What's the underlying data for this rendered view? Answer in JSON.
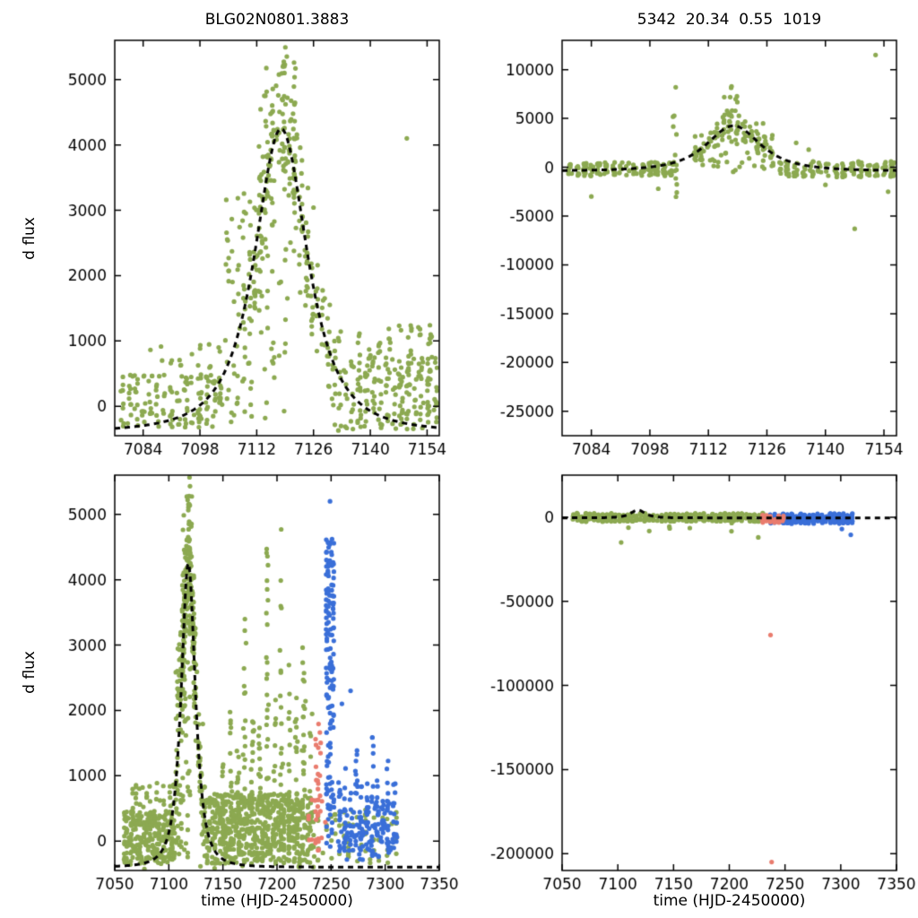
{
  "figure": {
    "background": "#ffffff"
  },
  "colors": {
    "green": "#8ca951",
    "blue": "#3a6fd8",
    "red": "#e97c6e",
    "curve": "#000000",
    "axis": "#000000"
  },
  "chart_data": [
    {
      "type": "scatter",
      "title": "BLG02N0801.3883",
      "xlabel": "",
      "ylabel": "d flux",
      "xlim": [
        7077,
        7157
      ],
      "ylim": [
        -450,
        5600
      ],
      "xticks": [
        7084,
        7098,
        7112,
        7126,
        7140,
        7154
      ],
      "yticks": [
        0,
        1000,
        2000,
        3000,
        4000,
        5000
      ],
      "grid": false,
      "legend": "none",
      "model_curve": {
        "shape": "paczynski-like",
        "t0": 7118,
        "width": 10,
        "amp": 4650,
        "base": -400,
        "exp": 1.5,
        "dashed": true
      },
      "clusters": [
        {
          "color": "green",
          "n": 140,
          "x": [
            7078,
            7104
          ],
          "y": [
            -320,
            480
          ],
          "nights": 15
        },
        {
          "color": "green",
          "n": 22,
          "x": [
            7080,
            7104
          ],
          "y": [
            450,
            950
          ],
          "nights": 10
        },
        {
          "color": "green",
          "n": 70,
          "x": [
            7104,
            7111
          ],
          "y": [
            -280,
            3300
          ],
          "nights": 5
        },
        {
          "color": "green",
          "mode": "follow",
          "n": 170,
          "x": [
            7111,
            7125
          ],
          "sigma": 550,
          "nights": 10
        },
        {
          "color": "green",
          "n": 45,
          "x": [
            7112,
            7122
          ],
          "y": [
            2600,
            5450
          ],
          "nights": 7
        },
        {
          "color": "green",
          "n": 30,
          "x": [
            7112,
            7120
          ],
          "y": [
            -250,
            2500
          ],
          "nights": 5
        },
        {
          "color": "green",
          "mode": "follow",
          "n": 60,
          "x": [
            7125,
            7133
          ],
          "sigma": 450,
          "nights": 6
        },
        {
          "color": "green",
          "n": 170,
          "x": [
            7133,
            7157
          ],
          "y": [
            -350,
            750
          ],
          "nights": 14
        },
        {
          "color": "green",
          "n": 55,
          "x": [
            7136,
            7156
          ],
          "y": [
            400,
            1250
          ],
          "nights": 8
        }
      ],
      "outliers": [
        [
          7149,
          4100,
          "green"
        ]
      ]
    },
    {
      "type": "scatter",
      "title": "5342  20.34  0.55  1019",
      "xlabel": "",
      "ylabel": "",
      "xlim": [
        7077,
        7157
      ],
      "ylim": [
        -27500,
        13000
      ],
      "xticks": [
        7084,
        7098,
        7112,
        7126,
        7140,
        7154
      ],
      "yticks": [
        -25000,
        -20000,
        -15000,
        -10000,
        -5000,
        0,
        5000,
        10000
      ],
      "grid": false,
      "legend": "none",
      "model_curve": {
        "shape": "paczynski-like",
        "t0": 7118,
        "width": 10,
        "amp": 4650,
        "base": -400,
        "exp": 1.5,
        "dashed": true
      },
      "clusters": [
        {
          "color": "green",
          "n": 150,
          "x": [
            7078,
            7104
          ],
          "y": [
            -900,
            500
          ],
          "nights": 15
        },
        {
          "color": "green",
          "n": 14,
          "x": [
            7103.5,
            7104.5
          ],
          "y": [
            -3500,
            8700
          ]
        },
        {
          "color": "green",
          "mode": "follow",
          "n": 130,
          "x": [
            7108,
            7128
          ],
          "sigma": 900,
          "nights": 12
        },
        {
          "color": "green",
          "n": 12,
          "x": [
            7114,
            7121
          ],
          "y": [
            5000,
            8800
          ],
          "nights": 5
        },
        {
          "color": "green",
          "n": 18,
          "x": [
            7112,
            7126
          ],
          "y": [
            -800,
            1500
          ],
          "nights": 8
        },
        {
          "color": "green",
          "n": 150,
          "x": [
            7128,
            7157
          ],
          "y": [
            -1000,
            600
          ],
          "nights": 15
        }
      ],
      "outliers": [
        [
          7084,
          -3000,
          "green"
        ],
        [
          7100,
          -2200,
          "green"
        ],
        [
          7133,
          2500,
          "green"
        ],
        [
          7136,
          1800,
          "green"
        ],
        [
          7140,
          -1800,
          "green"
        ],
        [
          7147,
          -6300,
          "green"
        ],
        [
          7152,
          11500,
          "green"
        ],
        [
          7155,
          -2500,
          "green"
        ]
      ]
    },
    {
      "type": "scatter",
      "title": "",
      "xlabel": "time (HJD-2450000)",
      "ylabel": "d flux",
      "xlim": [
        7050,
        7350
      ],
      "ylim": [
        -450,
        5600
      ],
      "xticks": [
        7050,
        7100,
        7150,
        7200,
        7250,
        7300,
        7350
      ],
      "yticks": [
        0,
        1000,
        2000,
        3000,
        4000,
        5000
      ],
      "grid": false,
      "legend": "none",
      "model_curve": {
        "shape": "paczynski-like",
        "t0": 7118,
        "width": 10,
        "amp": 4650,
        "base": -400,
        "exp": 1.5,
        "dashed": true
      },
      "clusters": [
        {
          "color": "green",
          "n": 280,
          "x": [
            7058,
            7106
          ],
          "y": [
            -350,
            460
          ],
          "nights": 24
        },
        {
          "color": "green",
          "n": 35,
          "x": [
            7062,
            7106
          ],
          "y": [
            420,
            900
          ],
          "nights": 14
        },
        {
          "color": "green",
          "n": 14,
          "x": [
            7058,
            7240
          ],
          "y": [
            -430,
            -310
          ],
          "nights": 14
        },
        {
          "color": "green",
          "n": 60,
          "x": [
            7106,
            7112
          ],
          "y": [
            -260,
            3300
          ],
          "nights": 4
        },
        {
          "color": "green",
          "mode": "follow",
          "n": 170,
          "x": [
            7112,
            7124
          ],
          "sigma": 500,
          "nights": 9
        },
        {
          "color": "green",
          "n": 45,
          "x": [
            7112,
            7122
          ],
          "y": [
            2600,
            5450
          ],
          "nights": 7
        },
        {
          "color": "green",
          "n": 28,
          "x": [
            7112,
            7120
          ],
          "y": [
            -250,
            2500
          ],
          "nights": 5
        },
        {
          "color": "green",
          "mode": "follow",
          "n": 60,
          "x": [
            7124,
            7134
          ],
          "sigma": 450,
          "nights": 7
        },
        {
          "color": "green",
          "n": 650,
          "x": [
            7134,
            7232
          ],
          "y": [
            -350,
            720
          ],
          "nights": 40
        },
        {
          "color": "green",
          "mode": "columns",
          "ymin": -120,
          "cols": [
            [
              7150,
              1200,
              14
            ],
            [
              7157,
              2000,
              16
            ],
            [
              7164,
              1500,
              14
            ],
            [
              7170,
              3400,
              22
            ],
            [
              7177,
              2400,
              18
            ],
            [
              7184,
              1800,
              14
            ],
            [
              7191,
              5200,
              26
            ],
            [
              7198,
              2200,
              16
            ],
            [
              7204,
              4800,
              22
            ],
            [
              7211,
              2800,
              18
            ],
            [
              7218,
              2200,
              16
            ],
            [
              7225,
              3400,
              20
            ],
            [
              7231,
              2000,
              14
            ]
          ]
        },
        {
          "color": "green",
          "n": 70,
          "x": [
            7232,
            7312
          ],
          "y": [
            -340,
            480
          ],
          "nights": 20
        },
        {
          "color": "blue",
          "n": 95,
          "x": [
            7245,
            7253
          ],
          "y": [
            2300,
            4650
          ],
          "nights": 5
        },
        {
          "color": "blue",
          "n": 55,
          "x": [
            7245,
            7253
          ],
          "y": [
            -140,
            2300
          ],
          "nights": 5
        },
        {
          "color": "blue",
          "mode": "columns",
          "ymin": -180,
          "cols": [
            [
              7258,
              900,
              13
            ],
            [
              7263,
              1150,
              14
            ],
            [
              7268,
              750,
              11
            ],
            [
              7273,
              1500,
              16
            ],
            [
              7278,
              1000,
              13
            ],
            [
              7283,
              900,
              11
            ],
            [
              7288,
              1600,
              16
            ],
            [
              7293,
              1100,
              13
            ],
            [
              7298,
              800,
              11
            ],
            [
              7303,
              1400,
              14
            ],
            [
              7308,
              950,
              11
            ]
          ]
        },
        {
          "color": "blue",
          "n": 75,
          "x": [
            7255,
            7312
          ],
          "y": [
            -300,
            520
          ],
          "nights": 20
        },
        {
          "color": "red",
          "n": 26,
          "x": [
            7235,
            7241
          ],
          "y": [
            -150,
            1800
          ],
          "nights": 3
        },
        {
          "color": "red",
          "n": 12,
          "x": [
            7228,
            7246
          ],
          "y": [
            -150,
            650
          ],
          "nights": 6
        }
      ],
      "outliers": [
        [
          7249,
          5200,
          "blue"
        ],
        [
          7260,
          2100,
          "blue"
        ],
        [
          7268,
          2300,
          "blue"
        ]
      ]
    },
    {
      "type": "scatter",
      "title": "",
      "xlabel": "time (HJD-2450000)",
      "ylabel": "",
      "xlim": [
        7050,
        7350
      ],
      "ylim": [
        -210000,
        25000
      ],
      "xticks": [
        7050,
        7100,
        7150,
        7200,
        7250,
        7300,
        7350
      ],
      "yticks": [
        -200000,
        -150000,
        -100000,
        -50000,
        0
      ],
      "grid": false,
      "legend": "none",
      "model_curve": {
        "shape": "paczynski-like",
        "t0": 7118,
        "width": 10,
        "amp": 4650,
        "base": -400,
        "exp": 1.5,
        "dashed": true
      },
      "clusters": [
        {
          "color": "green",
          "n": 340,
          "x": [
            7058,
            7232
          ],
          "y": [
            -2600,
            2400
          ],
          "nights": 46
        },
        {
          "color": "green",
          "n": 7,
          "x": [
            7100,
            7230
          ],
          "y": [
            -9000,
            -3500
          ],
          "nights": 7
        },
        {
          "color": "blue",
          "n": 210,
          "x": [
            7235,
            7312
          ],
          "y": [
            -3800,
            2200
          ],
          "nights": 20
        },
        {
          "color": "red",
          "n": 30,
          "x": [
            7228,
            7250
          ],
          "y": [
            -3200,
            1600
          ],
          "nights": 6
        }
      ],
      "outliers": [
        [
          7103,
          -15000,
          "green"
        ],
        [
          7226,
          -12000,
          "green"
        ],
        [
          7237,
          -70000,
          "red"
        ],
        [
          7238,
          -205000,
          "red"
        ],
        [
          7309,
          -10500,
          "blue"
        ],
        [
          7301,
          -7000,
          "blue"
        ]
      ]
    }
  ]
}
